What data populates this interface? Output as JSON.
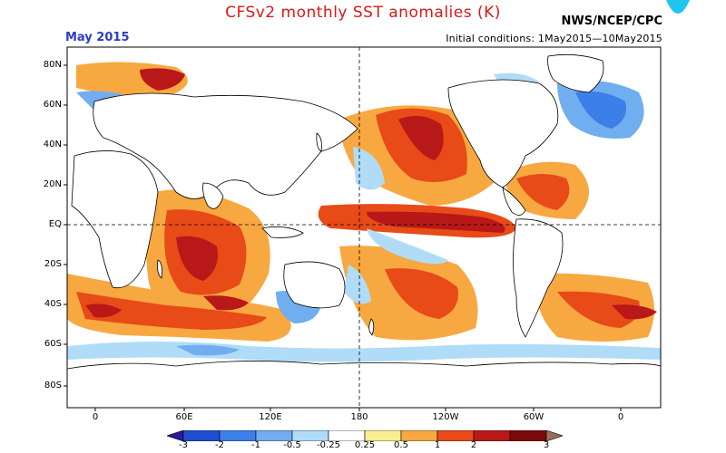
{
  "header": {
    "title": "CFSv2 monthly SST anomalies (K)",
    "agency": "NWS/NCEP/CPC",
    "month": "May 2015",
    "initial_conditions": "Initial conditions: 1May2015—10May2015"
  },
  "map": {
    "lat_labels": [
      "80N",
      "60N",
      "40N",
      "20N",
      "EQ",
      "20S",
      "40S",
      "60S",
      "80S"
    ],
    "lon_labels": [
      "0",
      "60E",
      "120E",
      "180",
      "120W",
      "60W",
      "0"
    ]
  },
  "colorbar": {
    "labels": [
      "-3",
      "-2",
      "-1",
      "-0.5",
      "-0.25",
      "0.25",
      "0.5",
      "1",
      "2",
      "3"
    ],
    "colors": [
      "#2a1a9a",
      "#1f4fd0",
      "#3d7fe8",
      "#71aef0",
      "#b0dcf8",
      "#ffffff",
      "#f8f090",
      "#f8a840",
      "#e84a18",
      "#b81818",
      "#7a0a0a",
      "#96705a"
    ]
  },
  "colors": {
    "title": "#d81818",
    "month": "#2a3ec8",
    "land": "#ffffff"
  }
}
